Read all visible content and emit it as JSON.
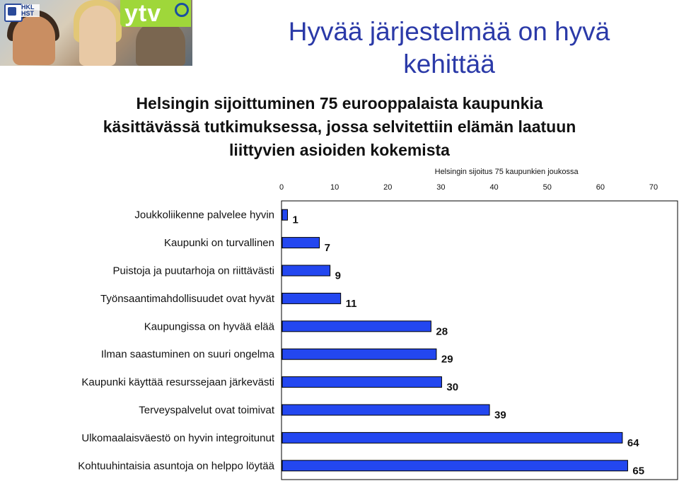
{
  "header": {
    "logo_left_text": "HKL HST",
    "logo_right_text": "ytv",
    "title": "Hyvää järjestelmää on hyvä kehittää"
  },
  "subtitle": "Helsingin sijoittuminen 75 eurooppalaista kaupunkia käsittävässä tutkimuksessa, jossa selvitettiin elämän laatuun liittyvien asioiden kokemista",
  "colors": {
    "bar": "#2347f0",
    "bar_border": "#000000",
    "title": "#2b3aa8",
    "grid": "#000000"
  },
  "chart_data": {
    "type": "bar",
    "orientation": "horizontal",
    "axis_title": "Helsingin sijoitus 75 kaupunkien joukossa",
    "xlim": [
      0,
      70
    ],
    "xticks": [
      0,
      10,
      20,
      30,
      40,
      50,
      60,
      70
    ],
    "axis_position": "top",
    "grid": false,
    "categories": [
      "Joukkoliikenne palvelee hyvin",
      "Kaupunki on turvallinen",
      "Puistoja ja puutarhoja on riittävästi",
      "Työnsaantimahdollisuudet ovat hyvät",
      "Kaupungissa on hyvää elää",
      "Ilman saastuminen on suuri ongelma",
      "Kaupunki käyttää resurssejaan järkevästi",
      "Terveyspalvelut ovat toimivat",
      "Ulkomaalaisväestö on hyvin integroitunut",
      "Kohtuuhintaisia asuntoja on helppo löytää"
    ],
    "values": [
      1,
      7,
      9,
      11,
      28,
      29,
      30,
      39,
      64,
      65
    ]
  }
}
